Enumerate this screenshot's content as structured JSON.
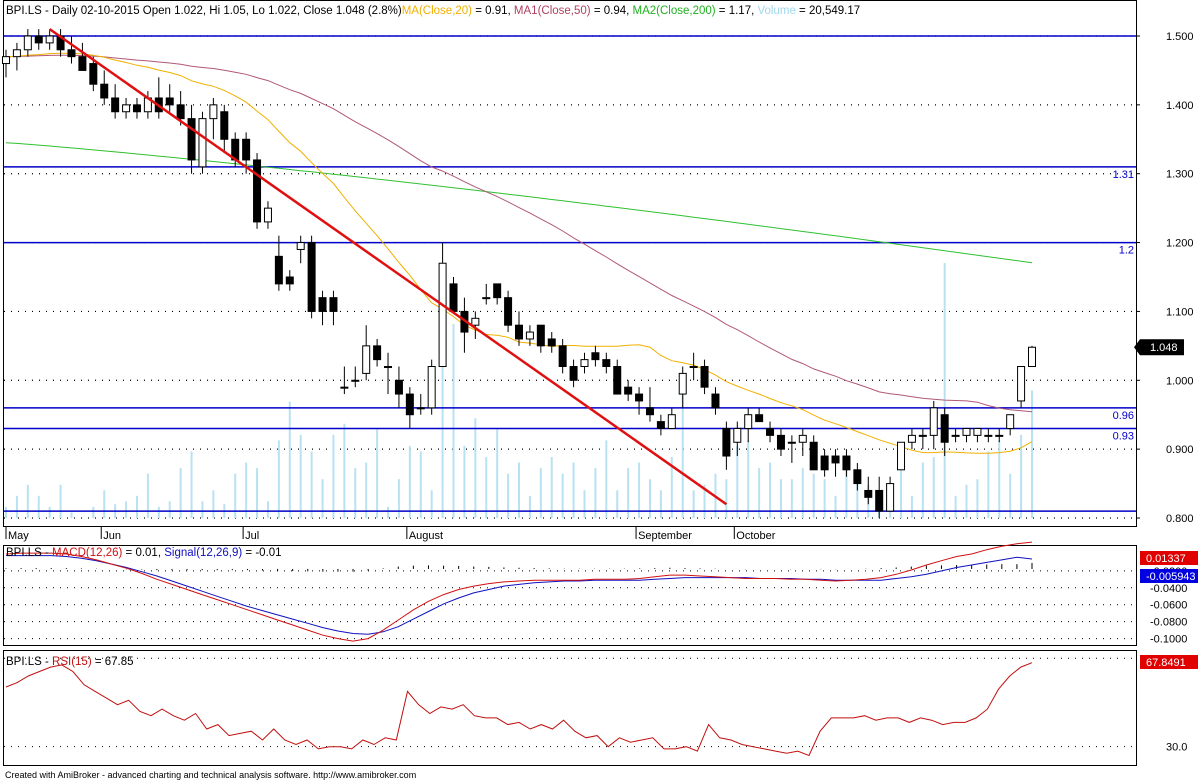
{
  "header": {
    "prefix": "BPI.LS - Daily 02-10-2015 Open 1.022, Hi 1.05, Lo 1.022, Close 1.048 (2.8%)",
    "ma20_label": "MA(Close,20)",
    "ma20_value": " = 0.91, ",
    "ma50_label": "MA1(Close,50)",
    "ma50_value": " = 0.94, ",
    "ma200_label": "MA2(Close,200)",
    "ma200_value": " = 1.17, ",
    "volume_label": "Volume",
    "volume_value": " = 20,549.17"
  },
  "macd_header": {
    "prefix": "BPI.LS - ",
    "macd_label": "MACD(12,26)",
    "macd_value": " = 0.01, ",
    "signal_label": "Signal(12,26,9)",
    "signal_value": " = -0.01"
  },
  "rsi_header": {
    "prefix": "BPI.LS - ",
    "rsi_label": "RSI(15)",
    "rsi_value": " = 67.85"
  },
  "footer": "Created with AmiBroker - advanced charting and technical analysis software. http://www.amibroker.com",
  "colors": {
    "ma20": "#f0b000",
    "ma50": "#b05878",
    "ma200": "#30c030",
    "volume": "#b8e2f2",
    "trendline": "#e01010",
    "hline": "#0000c8",
    "macd": "#d01010",
    "signal": "#1010c0",
    "rsi": "#c01010"
  },
  "chart_data": [
    {
      "type": "candlestick",
      "ylim": [
        0.78,
        1.52
      ],
      "yticks": [
        "1.500",
        "1.400",
        "1.300",
        "1.200",
        "1.100",
        "1.000",
        "0.900",
        "0.800"
      ],
      "xlabels": [
        "May",
        "Jun",
        "Jul",
        "August",
        "September",
        "October"
      ],
      "last_price": "1.048",
      "hlines": [
        {
          "value": 1.5,
          "label": ""
        },
        {
          "value": 1.31,
          "label": "1.31"
        },
        {
          "value": 1.2,
          "label": "1.2"
        },
        {
          "value": 0.96,
          "label": "0.96"
        },
        {
          "value": 0.93,
          "label": "0.93"
        },
        {
          "value": 0.81,
          "label": ""
        }
      ],
      "trendline": [
        {
          "index": 4,
          "value": 1.51
        },
        {
          "index": 66,
          "value": 0.82
        }
      ],
      "candles": [
        [
          1.46,
          1.48,
          1.44,
          1.47
        ],
        [
          1.47,
          1.49,
          1.45,
          1.48
        ],
        [
          1.48,
          1.51,
          1.47,
          1.5
        ],
        [
          1.5,
          1.51,
          1.48,
          1.49
        ],
        [
          1.49,
          1.51,
          1.48,
          1.5
        ],
        [
          1.5,
          1.51,
          1.47,
          1.48
        ],
        [
          1.48,
          1.5,
          1.46,
          1.47
        ],
        [
          1.47,
          1.49,
          1.45,
          1.45
        ],
        [
          1.46,
          1.47,
          1.42,
          1.43
        ],
        [
          1.43,
          1.45,
          1.4,
          1.41
        ],
        [
          1.41,
          1.43,
          1.38,
          1.39
        ],
        [
          1.39,
          1.41,
          1.38,
          1.4
        ],
        [
          1.4,
          1.41,
          1.38,
          1.39
        ],
        [
          1.39,
          1.42,
          1.38,
          1.41
        ],
        [
          1.41,
          1.44,
          1.38,
          1.39
        ],
        [
          1.41,
          1.43,
          1.39,
          1.4
        ],
        [
          1.4,
          1.42,
          1.37,
          1.38
        ],
        [
          1.38,
          1.4,
          1.3,
          1.32
        ],
        [
          1.31,
          1.39,
          1.3,
          1.38
        ],
        [
          1.38,
          1.41,
          1.35,
          1.4
        ],
        [
          1.39,
          1.4,
          1.33,
          1.35
        ],
        [
          1.35,
          1.36,
          1.31,
          1.32
        ],
        [
          1.35,
          1.36,
          1.3,
          1.32
        ],
        [
          1.32,
          1.33,
          1.22,
          1.23
        ],
        [
          1.23,
          1.26,
          1.22,
          1.25
        ],
        [
          1.18,
          1.21,
          1.13,
          1.14
        ],
        [
          1.15,
          1.16,
          1.13,
          1.14
        ],
        [
          1.19,
          1.21,
          1.17,
          1.2
        ],
        [
          1.2,
          1.21,
          1.09,
          1.1
        ],
        [
          1.12,
          1.13,
          1.08,
          1.1
        ],
        [
          1.12,
          1.13,
          1.08,
          1.1
        ],
        [
          0.99,
          1.02,
          0.98,
          0.99
        ],
        [
          1.0,
          1.02,
          0.99,
          1.0
        ],
        [
          1.01,
          1.08,
          1.0,
          1.05
        ],
        [
          1.05,
          1.06,
          1.02,
          1.03
        ],
        [
          1.02,
          1.04,
          0.98,
          1.02
        ],
        [
          1.0,
          1.02,
          0.96,
          0.98
        ],
        [
          0.98,
          0.99,
          0.93,
          0.95
        ],
        [
          0.96,
          0.98,
          0.95,
          0.96
        ],
        [
          0.96,
          1.03,
          0.95,
          1.02
        ],
        [
          1.02,
          1.2,
          1.02,
          1.17
        ],
        [
          1.14,
          1.15,
          1.1,
          1.1
        ],
        [
          1.1,
          1.12,
          1.04,
          1.07
        ],
        [
          1.08,
          1.1,
          1.06,
          1.09
        ],
        [
          1.12,
          1.14,
          1.11,
          1.12
        ],
        [
          1.14,
          1.14,
          1.11,
          1.12
        ],
        [
          1.12,
          1.13,
          1.07,
          1.08
        ],
        [
          1.08,
          1.1,
          1.05,
          1.06
        ],
        [
          1.06,
          1.08,
          1.05,
          1.07
        ],
        [
          1.08,
          1.08,
          1.04,
          1.05
        ],
        [
          1.06,
          1.07,
          1.04,
          1.05
        ],
        [
          1.05,
          1.06,
          1.01,
          1.02
        ],
        [
          1.02,
          1.03,
          0.99,
          1.0
        ],
        [
          1.02,
          1.04,
          1.01,
          1.03
        ],
        [
          1.04,
          1.05,
          1.02,
          1.03
        ],
        [
          1.03,
          1.04,
          1.01,
          1.02
        ],
        [
          1.02,
          1.03,
          0.98,
          0.98
        ],
        [
          0.99,
          1.0,
          0.97,
          0.98
        ],
        [
          0.98,
          0.99,
          0.95,
          0.97
        ],
        [
          0.96,
          0.99,
          0.94,
          0.95
        ],
        [
          0.94,
          0.95,
          0.92,
          0.93
        ],
        [
          0.93,
          0.96,
          0.93,
          0.95
        ],
        [
          0.98,
          1.02,
          0.96,
          1.01
        ],
        [
          1.02,
          1.04,
          1.0,
          1.02
        ],
        [
          1.02,
          1.03,
          0.98,
          0.99
        ],
        [
          0.98,
          0.99,
          0.95,
          0.96
        ],
        [
          0.93,
          0.94,
          0.87,
          0.89
        ],
        [
          0.91,
          0.94,
          0.89,
          0.93
        ],
        [
          0.93,
          0.96,
          0.91,
          0.95
        ],
        [
          0.95,
          0.96,
          0.94,
          0.94
        ],
        [
          0.93,
          0.94,
          0.91,
          0.92
        ],
        [
          0.92,
          0.93,
          0.89,
          0.9
        ],
        [
          0.91,
          0.92,
          0.88,
          0.91
        ],
        [
          0.91,
          0.93,
          0.89,
          0.92
        ],
        [
          0.91,
          0.92,
          0.87,
          0.87
        ],
        [
          0.89,
          0.9,
          0.86,
          0.87
        ],
        [
          0.89,
          0.9,
          0.86,
          0.88
        ],
        [
          0.89,
          0.9,
          0.86,
          0.87
        ],
        [
          0.87,
          0.88,
          0.84,
          0.85
        ],
        [
          0.84,
          0.86,
          0.82,
          0.83
        ],
        [
          0.84,
          0.86,
          0.8,
          0.81
        ],
        [
          0.81,
          0.86,
          0.81,
          0.85
        ],
        [
          0.87,
          0.91,
          0.87,
          0.91
        ],
        [
          0.91,
          0.93,
          0.9,
          0.92
        ],
        [
          0.92,
          0.93,
          0.9,
          0.92
        ],
        [
          0.92,
          0.97,
          0.9,
          0.96
        ],
        [
          0.95,
          0.96,
          0.89,
          0.91
        ],
        [
          0.92,
          0.93,
          0.91,
          0.92
        ],
        [
          0.92,
          0.93,
          0.91,
          0.93
        ],
        [
          0.92,
          0.93,
          0.91,
          0.93
        ],
        [
          0.92,
          0.93,
          0.91,
          0.92
        ],
        [
          0.92,
          0.93,
          0.91,
          0.92
        ],
        [
          0.93,
          0.95,
          0.92,
          0.95
        ],
        [
          0.97,
          1.02,
          0.96,
          1.02
        ],
        [
          1.02,
          1.05,
          1.02,
          1.048
        ]
      ],
      "volume": [
        4,
        8,
        12,
        8,
        4,
        12,
        2,
        0,
        4,
        10,
        5,
        6,
        8,
        16,
        4,
        6,
        18,
        24,
        6,
        10,
        5,
        16,
        20,
        18,
        6,
        28,
        42,
        30,
        24,
        14,
        30,
        34,
        18,
        20,
        32,
        4,
        14,
        26,
        24,
        10,
        62,
        70,
        26,
        36,
        22,
        32,
        16,
        20,
        8,
        18,
        22,
        16,
        20,
        10,
        18,
        28,
        10,
        18,
        20,
        14,
        10,
        22,
        46,
        10,
        12,
        16,
        14,
        26,
        28,
        18,
        20,
        14,
        14,
        18,
        16,
        14,
        8,
        20,
        16,
        12,
        6,
        10,
        18,
        8,
        20,
        22,
        92,
        8,
        12,
        14,
        24,
        28,
        16,
        30,
        46,
        22,
        20
      ]
    },
    {
      "type": "line",
      "name": "MACD",
      "ylim": [
        -0.1076,
        0.0094
      ],
      "yticks": [
        "-0.0200",
        "-0.0400",
        "-0.0600",
        "-0.0800",
        "-0.1000"
      ],
      "macd_tag": "0.01337",
      "signal_tag": "-0.005943",
      "macd": [
        0.0,
        0.001,
        0.001,
        0.001,
        0.0,
        -0.003,
        -0.007,
        -0.012,
        -0.017,
        -0.023,
        -0.03,
        -0.036,
        -0.042,
        -0.048,
        -0.054,
        -0.06,
        -0.066,
        -0.072,
        -0.078,
        -0.084,
        -0.09,
        -0.096,
        -0.1,
        -0.103,
        -0.1,
        -0.09,
        -0.078,
        -0.066,
        -0.056,
        -0.048,
        -0.042,
        -0.038,
        -0.035,
        -0.033,
        -0.032,
        -0.031,
        -0.031,
        -0.031,
        -0.031,
        -0.03,
        -0.03,
        -0.03,
        -0.029,
        -0.027,
        -0.025,
        -0.025,
        -0.026,
        -0.027,
        -0.028,
        -0.029,
        -0.029,
        -0.029,
        -0.03,
        -0.03,
        -0.031,
        -0.032,
        -0.031,
        -0.03,
        -0.028,
        -0.024,
        -0.019,
        -0.013,
        -0.008,
        -0.003,
        0.0,
        0.005,
        0.009,
        0.012,
        0.014
      ],
      "signal": [
        -0.002,
        -0.002,
        -0.002,
        -0.002,
        -0.003,
        -0.005,
        -0.008,
        -0.012,
        -0.016,
        -0.021,
        -0.026,
        -0.032,
        -0.038,
        -0.044,
        -0.05,
        -0.056,
        -0.062,
        -0.067,
        -0.072,
        -0.077,
        -0.082,
        -0.087,
        -0.091,
        -0.094,
        -0.095,
        -0.092,
        -0.086,
        -0.077,
        -0.068,
        -0.059,
        -0.052,
        -0.046,
        -0.042,
        -0.038,
        -0.036,
        -0.034,
        -0.033,
        -0.032,
        -0.032,
        -0.031,
        -0.031,
        -0.031,
        -0.031,
        -0.03,
        -0.029,
        -0.028,
        -0.028,
        -0.028,
        -0.028,
        -0.028,
        -0.029,
        -0.029,
        -0.029,
        -0.03,
        -0.03,
        -0.031,
        -0.031,
        -0.031,
        -0.031,
        -0.029,
        -0.027,
        -0.024,
        -0.02,
        -0.016,
        -0.013,
        -0.01,
        -0.007,
        -0.004,
        -0.006
      ]
    },
    {
      "type": "line",
      "name": "RSI",
      "ylim": [
        21.7,
        73.3
      ],
      "yticks": [
        "70.0",
        "30.0"
      ],
      "rsi_tag": "67.8491",
      "rsi": [
        57,
        59,
        62,
        64,
        66,
        67,
        64,
        58,
        55,
        52,
        49,
        51,
        46,
        44,
        47,
        44,
        42,
        45,
        38,
        40,
        35,
        36,
        37,
        33,
        38,
        33,
        31,
        33,
        29,
        30,
        30,
        29,
        33,
        31,
        34,
        33,
        55,
        49,
        45,
        48,
        47,
        49,
        44,
        43,
        43,
        40,
        41,
        38,
        40,
        38,
        42,
        37,
        34,
        35,
        30,
        34,
        32,
        33,
        34,
        29,
        29,
        30,
        28,
        40,
        34,
        33,
        31,
        30,
        29,
        28,
        27,
        28,
        26,
        37,
        43,
        43,
        43,
        44,
        42,
        43,
        43,
        41,
        43,
        42,
        40,
        41,
        41,
        43,
        47,
        56,
        62,
        66,
        68
      ]
    }
  ]
}
